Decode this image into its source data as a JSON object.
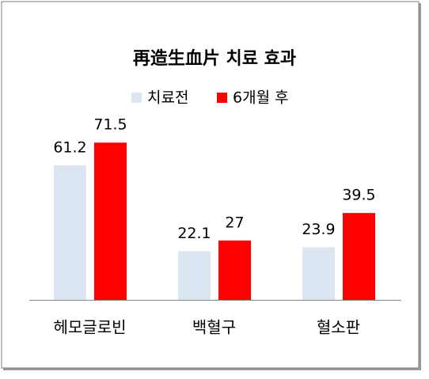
{
  "chart_data": {
    "type": "bar",
    "title": "再造生血片 치료 효과",
    "categories": [
      "헤모글로빈",
      "백혈구",
      "혈소판"
    ],
    "series": [
      {
        "name": "치료전",
        "color": "#dce6f2",
        "values": [
          61.2,
          22.1,
          23.9
        ]
      },
      {
        "name": "6개월 후",
        "color": "#ff0000",
        "values": [
          71.5,
          27,
          39.5
        ]
      }
    ],
    "ylim": [
      0,
      100
    ]
  }
}
